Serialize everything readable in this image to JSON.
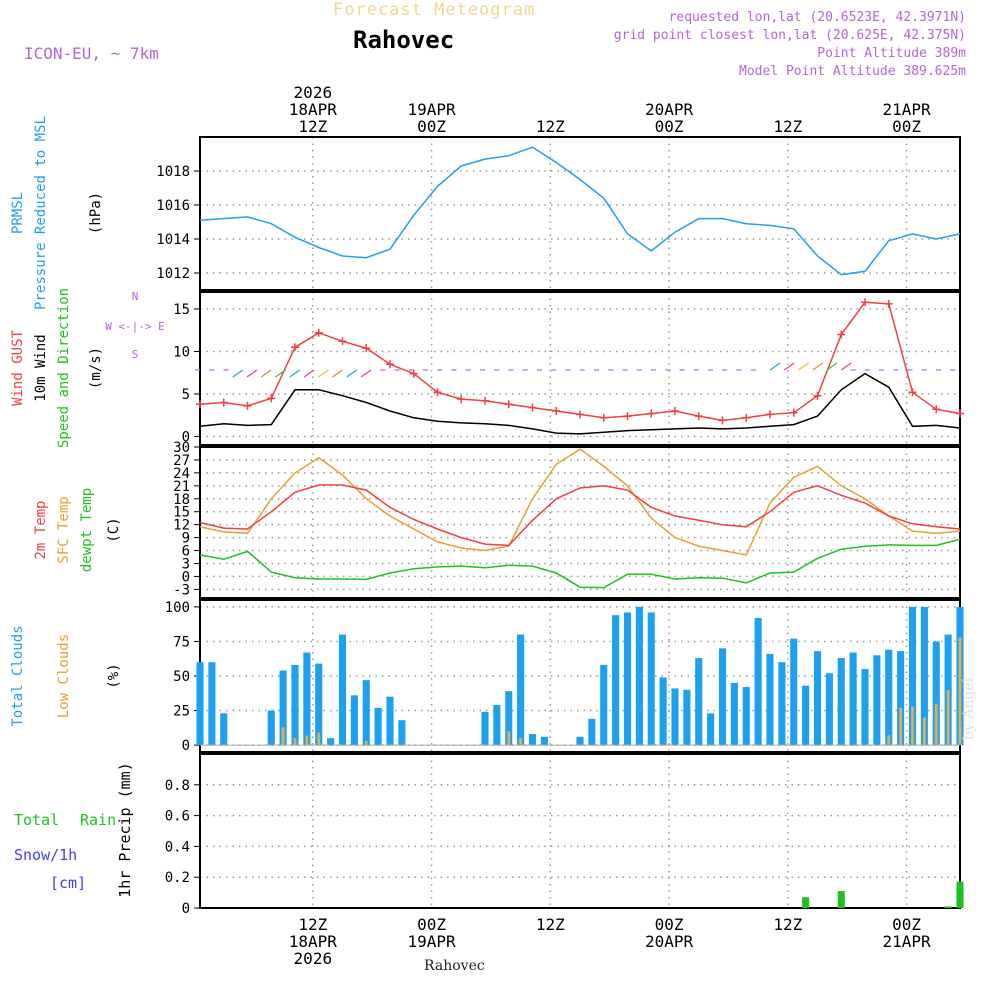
{
  "header": {
    "title": "Forecast Meteogram",
    "location": "Rahovec",
    "model": "ICON-EU, ~ 7km",
    "requested": "requested lon,lat (20.6523E, 42.3971N)",
    "gridpoint": "grid point closest lon,lat (20.625E, 42.375N)",
    "point_alt": "Point Altitude 389m",
    "model_alt": "Model Point Altitude 389.625m"
  },
  "footer": {
    "location": "Rahovec",
    "byline": "by Angel"
  },
  "colors": {
    "pressure": "#1ea0f0",
    "gust": "#f04040",
    "wind": "#000000",
    "winddir": "#20c020",
    "temp2m": "#f04040",
    "sfc": "#e8a030",
    "dewpt": "#20c020",
    "total_clouds": "#1ea0f0",
    "low_clouds": "#d4b060",
    "rain": "#20c020",
    "snow": "#4040f0",
    "arrow_purple": "#b464e0"
  },
  "chart_data": [
    {
      "id": "pressure",
      "type": "line",
      "title": "PRMSL Pressure Reduced to MSL",
      "ylabel_lines": [
        "PRMSL",
        "Pressure Reduced to MSL"
      ],
      "unit": "(hPa)",
      "ylim": [
        1011,
        1020
      ],
      "yticks": [
        1012,
        1014,
        1016,
        1018
      ],
      "xlim": [
        0,
        64
      ],
      "x": [
        0,
        2,
        4,
        6,
        8,
        10,
        12,
        14,
        16,
        18,
        20,
        22,
        24,
        26,
        28,
        30,
        32,
        34,
        36,
        38,
        40,
        42,
        44,
        46,
        48,
        50,
        52,
        54,
        56,
        58,
        60,
        62,
        64
      ],
      "series": [
        {
          "name": "PRMSL",
          "values": [
            1015.1,
            1015.2,
            1015.3,
            1014.9,
            1014.1,
            1013.5,
            1013.0,
            1012.9,
            1013.4,
            1015.4,
            1017.1,
            1018.3,
            1018.7,
            1018.9,
            1019.4,
            1018.5,
            1017.5,
            1016.4,
            1014.3,
            1013.3,
            1014.4,
            1015.2,
            1015.2,
            1014.9,
            1014.8,
            1014.6,
            1013.0,
            1011.9,
            1012.1,
            1013.9,
            1014.3,
            1014.0,
            1014.3
          ]
        }
      ]
    },
    {
      "id": "wind",
      "type": "line",
      "title": "Wind",
      "ylabel_lines": [
        "Wind GUST",
        "10m Wind",
        "Speed and Direction"
      ],
      "unit": "(m/s)",
      "compass": [
        "N",
        "W <-|-> E",
        "S"
      ],
      "ylim": [
        -1,
        17
      ],
      "yticks": [
        0,
        5,
        10,
        15
      ],
      "xlim": [
        0,
        64
      ],
      "x": [
        0,
        2,
        4,
        6,
        8,
        10,
        12,
        14,
        16,
        18,
        20,
        22,
        24,
        26,
        28,
        30,
        32,
        34,
        36,
        38,
        40,
        42,
        44,
        46,
        48,
        50,
        52,
        54,
        56,
        58,
        60,
        62,
        64
      ],
      "series": [
        {
          "name": "Wind GUST",
          "values": [
            3.8,
            4.0,
            3.6,
            4.5,
            10.5,
            12.2,
            11.2,
            10.4,
            8.5,
            7.4,
            5.2,
            4.4,
            4.2,
            3.8,
            3.4,
            3.0,
            2.6,
            2.2,
            2.4,
            2.7,
            3.0,
            2.4,
            1.9,
            2.2,
            2.6,
            2.8,
            4.8,
            12.0,
            15.8,
            15.6,
            5.2,
            3.2,
            2.7
          ]
        },
        {
          "name": "10m Wind",
          "values": [
            1.2,
            1.5,
            1.3,
            1.4,
            5.5,
            5.5,
            4.8,
            4.0,
            3.0,
            2.2,
            1.8,
            1.6,
            1.5,
            1.3,
            0.9,
            0.4,
            0.3,
            0.5,
            0.7,
            0.8,
            0.9,
            1.0,
            0.9,
            1.0,
            1.2,
            1.4,
            2.4,
            5.5,
            7.4,
            5.8,
            1.2,
            1.3,
            1.0
          ]
        }
      ]
    },
    {
      "id": "temperature",
      "type": "line",
      "title": "Temperature",
      "ylabel_lines": [
        "2m Temp",
        "SFC Temp",
        "dewpt Temp"
      ],
      "unit": "(C)",
      "ylim": [
        -5,
        30
      ],
      "yticks": [
        -3,
        0,
        3,
        6,
        9,
        12,
        15,
        18,
        21,
        24,
        27,
        30
      ],
      "xlim": [
        0,
        64
      ],
      "x": [
        0,
        2,
        4,
        6,
        8,
        10,
        12,
        14,
        16,
        18,
        20,
        22,
        24,
        26,
        28,
        30,
        32,
        34,
        36,
        38,
        40,
        42,
        44,
        46,
        48,
        50,
        52,
        54,
        56,
        58,
        60,
        62,
        64
      ],
      "series": [
        {
          "name": "2m Temp",
          "values": [
            12.5,
            11.2,
            11.0,
            15.0,
            19.5,
            21.2,
            21.2,
            20.0,
            16.0,
            13.2,
            11.0,
            9.0,
            7.5,
            7.2,
            13.0,
            18.0,
            20.5,
            21.0,
            20.0,
            16.0,
            14.0,
            13.0,
            12.0,
            11.5,
            15.0,
            19.5,
            21.0,
            18.8,
            17.0,
            14.0,
            12.2,
            11.5,
            11.0
          ]
        },
        {
          "name": "SFC Temp",
          "values": [
            11.5,
            10.3,
            10.0,
            18.0,
            24.0,
            27.5,
            23.5,
            18.0,
            14.0,
            11.0,
            8.0,
            6.6,
            6.0,
            7.0,
            18.0,
            26.0,
            29.5,
            25.5,
            21.0,
            13.5,
            9.0,
            7.0,
            6.0,
            5.0,
            17.0,
            23.0,
            25.5,
            21.0,
            18.0,
            14.0,
            10.5,
            10.0,
            10.5
          ]
        },
        {
          "name": "dewpt Temp",
          "values": [
            5.0,
            4.0,
            5.8,
            1.0,
            -0.3,
            -0.6,
            -0.6,
            -0.7,
            0.8,
            1.8,
            2.2,
            2.4,
            2.0,
            2.6,
            2.4,
            0.8,
            -2.5,
            -2.6,
            0.5,
            0.5,
            -0.6,
            -0.3,
            -0.4,
            -1.5,
            0.8,
            1.0,
            4.2,
            6.3,
            7.0,
            7.3,
            7.2,
            7.2,
            8.6
          ]
        }
      ]
    },
    {
      "id": "clouds",
      "type": "bar",
      "title": "Clouds",
      "ylabel_lines": [
        "Total Clouds",
        "Low Clouds"
      ],
      "unit": "(%)",
      "ylim": [
        -5,
        105
      ],
      "yticks": [
        0,
        25,
        50,
        75,
        100
      ],
      "xlim": [
        0,
        64
      ],
      "x": [
        0,
        1,
        2,
        6,
        7,
        8,
        9,
        10,
        11,
        12,
        13,
        14,
        15,
        16,
        17,
        24,
        25,
        26,
        27,
        28,
        29,
        32,
        33,
        34,
        35,
        36,
        37,
        38,
        39,
        40,
        41,
        42,
        43,
        44,
        45,
        46,
        47,
        48,
        49,
        50,
        51,
        52,
        53,
        54,
        55,
        56,
        57,
        58,
        59,
        60,
        61,
        62,
        63,
        64
      ],
      "series": [
        {
          "name": "Total Clouds",
          "values": [
            60,
            60,
            23,
            25,
            54,
            58,
            67,
            59,
            5,
            80,
            36,
            47,
            27,
            35,
            18,
            24,
            29,
            39,
            80,
            8,
            6,
            6,
            19,
            58,
            94,
            96,
            100,
            96,
            49,
            41,
            40,
            63,
            23,
            70,
            45,
            42,
            92,
            66,
            60,
            77,
            43,
            68,
            52,
            63,
            67,
            55,
            65,
            69,
            68,
            100,
            100,
            75,
            80,
            100
          ]
        },
        {
          "name": "Low Clouds",
          "values": [
            0,
            0,
            0,
            0,
            13,
            5,
            7,
            9,
            0,
            0,
            0,
            3,
            0,
            0,
            0,
            0,
            0,
            10,
            5,
            0,
            0,
            0,
            0,
            0,
            0,
            0,
            0,
            0,
            0,
            0,
            0,
            0,
            0,
            0,
            0,
            0,
            0,
            0,
            0,
            0,
            0,
            0,
            0,
            0,
            0,
            0,
            0,
            7,
            27,
            28,
            20,
            30,
            40,
            78
          ]
        }
      ]
    },
    {
      "id": "precip",
      "type": "bar",
      "title": "1hr Precip (mm)",
      "ylabel_lines": [
        "1hr Precip (mm)"
      ],
      "legend": [
        "Total",
        "Rain",
        "Snow/1h",
        "[cm]"
      ],
      "unit": "(mm)",
      "ylim": [
        0,
        1.0
      ],
      "yticks": [
        0,
        0.2,
        0.4,
        0.6,
        0.8
      ],
      "xlim": [
        0,
        64
      ],
      "x": [
        51,
        54,
        63,
        64
      ],
      "series": [
        {
          "name": "Total Rain",
          "values": [
            0.07,
            0.11,
            0.01,
            0.17
          ]
        }
      ]
    }
  ],
  "time_axis": {
    "top_labels": [
      {
        "x": 9.5,
        "lines": [
          "2026",
          "18APR",
          "12Z"
        ]
      },
      {
        "x": 19.5,
        "lines": [
          "19APR",
          "00Z"
        ]
      },
      {
        "x": 29.5,
        "lines": [
          "12Z"
        ]
      },
      {
        "x": 39.5,
        "lines": [
          "20APR",
          "00Z"
        ]
      },
      {
        "x": 49.5,
        "lines": [
          "12Z"
        ]
      },
      {
        "x": 59.5,
        "lines": [
          "21APR",
          "00Z"
        ]
      }
    ],
    "bottom_labels": [
      {
        "x": 9.5,
        "lines": [
          "12Z",
          "18APR",
          "2026"
        ]
      },
      {
        "x": 19.5,
        "lines": [
          "00Z",
          "19APR"
        ]
      },
      {
        "x": 29.5,
        "lines": [
          "12Z"
        ]
      },
      {
        "x": 39.5,
        "lines": [
          "00Z",
          "20APR"
        ]
      },
      {
        "x": 49.5,
        "lines": [
          "12Z"
        ]
      },
      {
        "x": 59.5,
        "lines": [
          "00Z",
          "21APR"
        ]
      }
    ]
  }
}
